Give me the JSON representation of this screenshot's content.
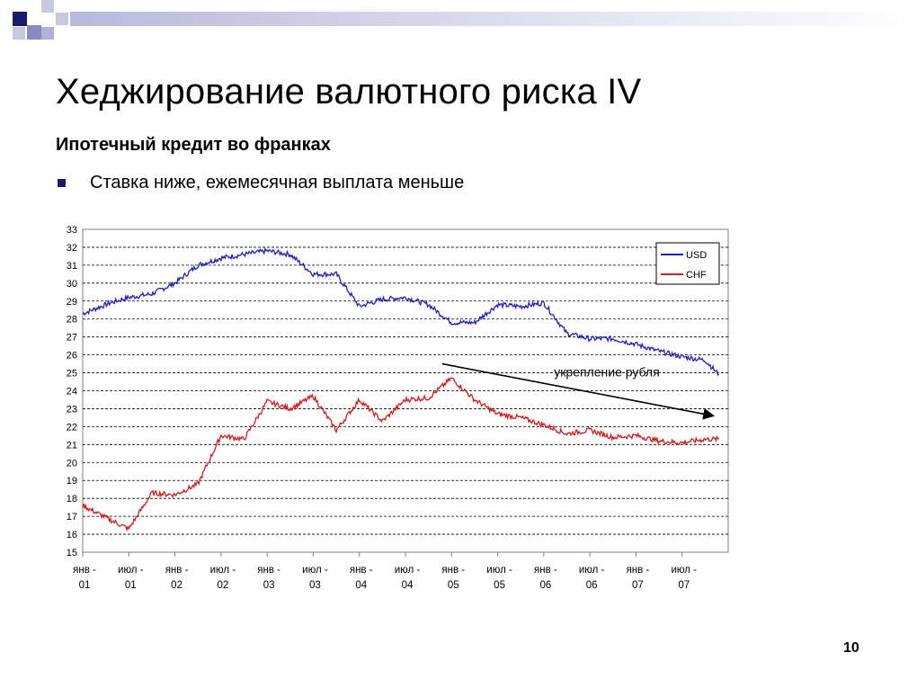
{
  "slide": {
    "title": "Хеджирование валютного риска IV",
    "subtitle": "Ипотечный кредит во франках",
    "bullets": [
      "Ставка ниже, ежемесячная выплата меньше"
    ],
    "page_number": "10",
    "accent_colors": [
      "#1a1a6e",
      "#8a8ac0",
      "#c7c7e0"
    ]
  },
  "chart_data": {
    "type": "line",
    "title": "",
    "xlabel": "",
    "ylabel": "",
    "ylim": [
      15,
      33
    ],
    "yticks": [
      "15",
      "16",
      "17",
      "18",
      "19",
      "20",
      "21",
      "22",
      "23",
      "24",
      "25",
      "26",
      "27",
      "28",
      "29",
      "30",
      "31",
      "32",
      "33"
    ],
    "grid": true,
    "legend_position": "top-right",
    "categories": [
      "янв - 01",
      "июл - 01",
      "янв - 02",
      "июл - 02",
      "янв - 03",
      "июл - 03",
      "янв - 04",
      "июл - 04",
      "янв - 05",
      "июл - 05",
      "янв - 06",
      "июл - 06",
      "янв - 07",
      "июл - 07"
    ],
    "x": [
      0,
      0.3,
      0.6,
      1,
      1.5,
      2,
      2.5,
      3,
      3.5,
      4,
      4.5,
      5,
      5.5,
      6,
      6.5,
      7,
      7.5,
      8,
      8.5,
      9,
      9.5,
      10,
      10.5,
      11,
      11.5,
      12,
      12.5,
      13,
      13.5,
      13.8
    ],
    "series": [
      {
        "name": "USD",
        "color": "#1f1fbf",
        "values": [
          28.3,
          28.6,
          28.9,
          29.2,
          29.4,
          30.0,
          31.0,
          31.4,
          31.6,
          31.8,
          31.6,
          30.5,
          30.5,
          28.7,
          29.1,
          29.2,
          28.8,
          27.8,
          27.8,
          28.8,
          28.7,
          28.9,
          27.2,
          26.9,
          26.9,
          26.6,
          26.2,
          25.9,
          25.7,
          24.9
        ]
      },
      {
        "name": "CHF",
        "color": "#d41c1c",
        "values": [
          17.6,
          17.2,
          16.8,
          16.3,
          18.3,
          18.2,
          18.8,
          21.5,
          21.3,
          23.4,
          23.0,
          23.7,
          21.8,
          23.5,
          22.3,
          23.5,
          23.6,
          24.7,
          23.5,
          22.7,
          22.5,
          22.1,
          21.6,
          21.8,
          21.4,
          21.5,
          21.2,
          21.1,
          21.3,
          21.3
        ]
      }
    ],
    "annotation": {
      "text": "укрепление рубля",
      "from": [
        7.8,
        25.5
      ],
      "to": [
        13.8,
        22.6
      ]
    }
  }
}
